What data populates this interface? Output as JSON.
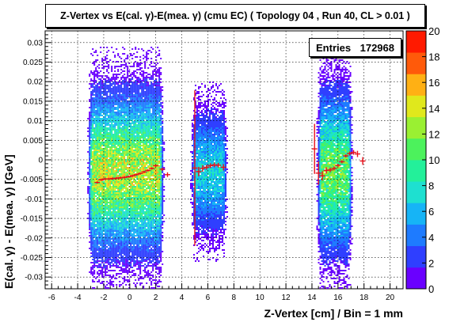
{
  "title": "Z-Vertex vs E(cal. γ)-E(mea. γ) (cmu EC) ( Topology 04 , Run 40, CL > 0.01 )",
  "stats": {
    "label": "Entries",
    "value": "172968"
  },
  "chart_data": {
    "type": "heatmap",
    "xlabel": "Z-Vertex [cm] / Bin = 1 mm",
    "ylabel": "E(cal. γ) - E(mea. γ) [GeV]",
    "xlim": [
      -6.5,
      21
    ],
    "ylim": [
      -0.033,
      0.033
    ],
    "x_ticks": [
      -6,
      -4,
      -2,
      0,
      2,
      4,
      6,
      8,
      10,
      12,
      14,
      16,
      18,
      20
    ],
    "y_ticks": [
      0.03,
      0.025,
      0.02,
      0.015,
      0.01,
      0.005,
      0,
      -0.005,
      -0.01,
      -0.015,
      -0.02,
      -0.025,
      -0.03
    ],
    "y_tick_labels": [
      "0.03",
      "0.025",
      "0.02",
      "0.015",
      "0.01",
      "0.005",
      "0",
      "-0.005",
      "-0.01",
      "-0.015",
      "-0.02",
      "-0.025",
      "-0.03"
    ],
    "grid": true,
    "z_range": [
      0,
      20
    ],
    "z_ticks": [
      0,
      2,
      4,
      6,
      8,
      10,
      12,
      14,
      16,
      18,
      20
    ],
    "palette": [
      "#6a00ff",
      "#2f3fff",
      "#1e7bff",
      "#16b4f6",
      "#1ee0d0",
      "#23f09a",
      "#4cf25c",
      "#9af032",
      "#e0e81c",
      "#ffb014",
      "#ff5a0a",
      "#ff1a00"
    ],
    "regions": [
      {
        "x_range": [
          -2.9,
          2.2
        ],
        "y_sigma": 0.0115,
        "peak": 13
      },
      {
        "x_range": [
          5.0,
          7.1
        ],
        "y_sigma": 0.009,
        "peak": 7
      },
      {
        "x_range": [
          14.7,
          16.7
        ],
        "y_sigma": 0.012,
        "peak": 11
      }
    ],
    "profile_points": [
      {
        "x": -2.5,
        "y": -0.0058,
        "err": 0.0003
      },
      {
        "x": -2.2,
        "y": -0.0051,
        "err": 0.0003
      },
      {
        "x": -1.9,
        "y": -0.0049,
        "err": 0.0003
      },
      {
        "x": -1.6,
        "y": -0.0049,
        "err": 0.0003
      },
      {
        "x": -1.3,
        "y": -0.0048,
        "err": 0.0003
      },
      {
        "x": -1.0,
        "y": -0.0047,
        "err": 0.0003
      },
      {
        "x": -0.7,
        "y": -0.0046,
        "err": 0.0003
      },
      {
        "x": -0.4,
        "y": -0.0045,
        "err": 0.0003
      },
      {
        "x": -0.1,
        "y": -0.0043,
        "err": 0.0003
      },
      {
        "x": 0.2,
        "y": -0.0041,
        "err": 0.0003
      },
      {
        "x": 0.5,
        "y": -0.0038,
        "err": 0.0003
      },
      {
        "x": 0.8,
        "y": -0.0035,
        "err": 0.0003
      },
      {
        "x": 1.1,
        "y": -0.0031,
        "err": 0.0003
      },
      {
        "x": 1.4,
        "y": -0.0027,
        "err": 0.0003
      },
      {
        "x": 1.7,
        "y": -0.0022,
        "err": 0.0003
      },
      {
        "x": 2.0,
        "y": -0.0015,
        "err": 0.0003
      },
      {
        "x": 2.5,
        "y": -0.0024,
        "err": 0.0004
      },
      {
        "x": 2.9,
        "y": -0.0038,
        "err": 0.0006
      },
      {
        "x": 5.0,
        "y": -0.0021,
        "err": 0.0199
      },
      {
        "x": 5.3,
        "y": -0.003,
        "err": 0.0012
      },
      {
        "x": 5.6,
        "y": -0.0022,
        "err": 0.0008
      },
      {
        "x": 5.9,
        "y": -0.0019,
        "err": 0.0006
      },
      {
        "x": 6.2,
        "y": -0.0015,
        "err": 0.0006
      },
      {
        "x": 6.5,
        "y": -0.0013,
        "err": 0.0006
      },
      {
        "x": 6.8,
        "y": -0.0014,
        "err": 0.0006
      },
      {
        "x": 7.2,
        "y": -0.0019,
        "err": 0.0008
      },
      {
        "x": 14.2,
        "y": 0.0028,
        "err": 0.0064
      },
      {
        "x": 14.5,
        "y": -0.0034,
        "err": 0.003
      },
      {
        "x": 14.8,
        "y": -0.0041,
        "err": 0.0012
      },
      {
        "x": 15.1,
        "y": -0.0027,
        "err": 0.0008
      },
      {
        "x": 15.4,
        "y": -0.0026,
        "err": 0.0006
      },
      {
        "x": 15.7,
        "y": -0.0022,
        "err": 0.0005
      },
      {
        "x": 16.0,
        "y": -0.0014,
        "err": 0.0004
      },
      {
        "x": 16.3,
        "y": -0.0005,
        "err": 0.0004
      },
      {
        "x": 16.6,
        "y": 0.001,
        "err": 0.0004
      },
      {
        "x": 16.9,
        "y": 0.0016,
        "err": 0.0005
      },
      {
        "x": 17.2,
        "y": 0.0019,
        "err": 0.0006
      },
      {
        "x": 17.5,
        "y": 0.0015,
        "err": 0.0008
      },
      {
        "x": 17.9,
        "y": -0.0003,
        "err": 0.001
      }
    ]
  }
}
